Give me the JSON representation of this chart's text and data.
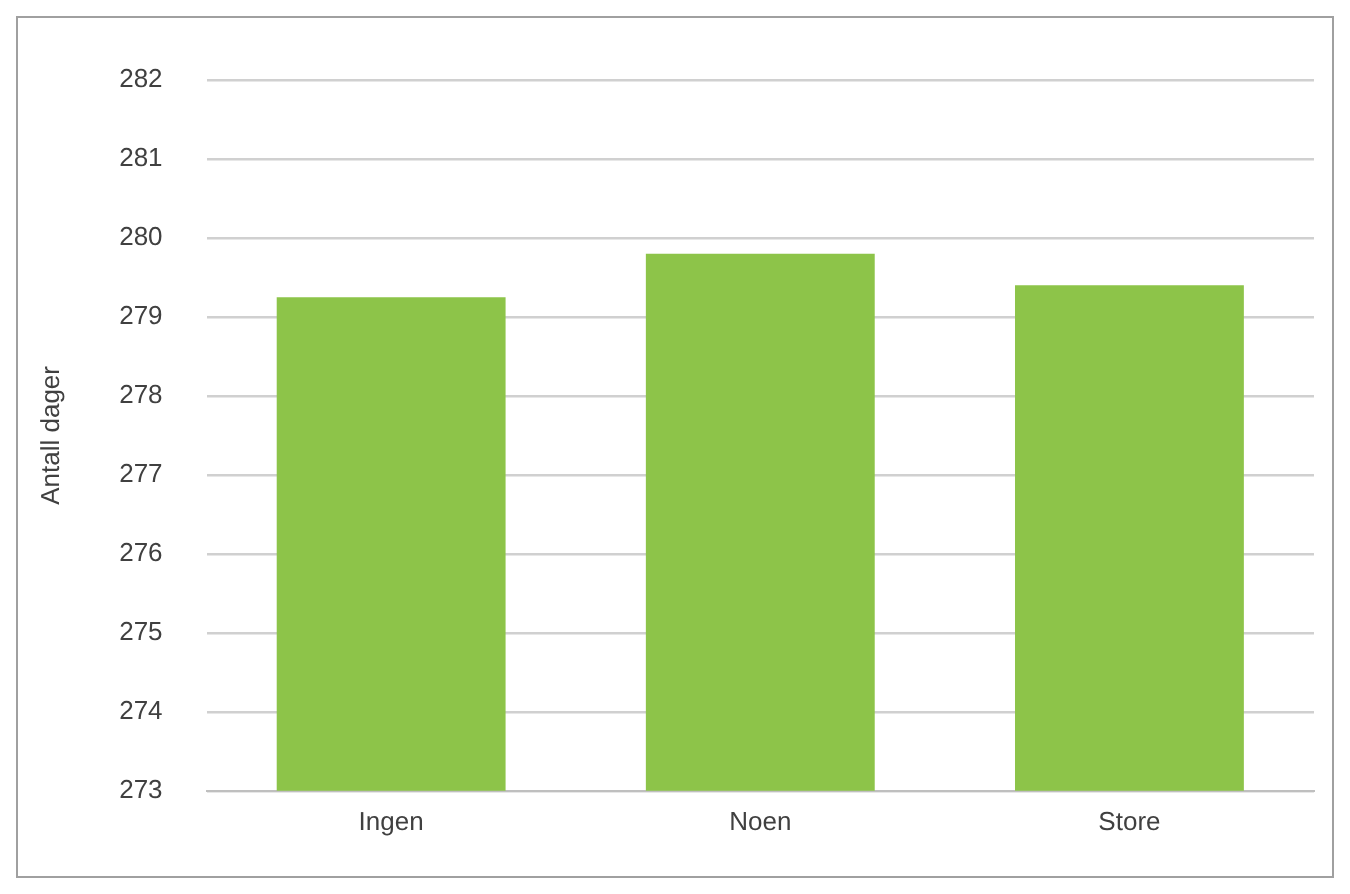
{
  "chart_data": {
    "type": "bar",
    "ylabel": "Antall dager",
    "categories": [
      "Ingen",
      "Noen",
      "Store"
    ],
    "values": [
      279.25,
      279.8,
      279.4
    ],
    "color": "#8dc449",
    "ylim": [
      273,
      282
    ],
    "yticks": [
      273,
      274,
      275,
      276,
      277,
      278,
      279,
      280,
      281,
      282
    ],
    "grid": "y",
    "legend": false
  }
}
